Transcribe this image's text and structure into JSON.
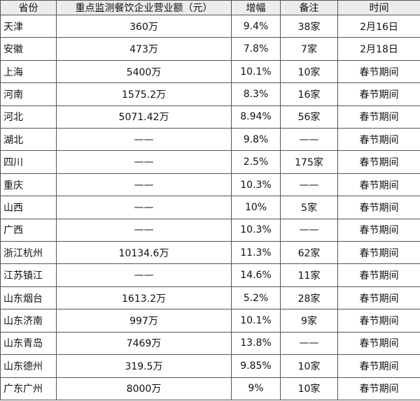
{
  "table": {
    "header": [
      "省份",
      "重点监测餐饮企业营业额（元）",
      "增幅",
      "备注",
      "时间"
    ],
    "rows": [
      [
        "天津",
        "360万",
        "9.4%",
        "38家",
        "2月16日"
      ],
      [
        "安徽",
        "473万",
        "7.8%",
        "7家",
        "2月18日"
      ],
      [
        "上海",
        "5400万",
        "10.1%",
        "10家",
        "春节期间"
      ],
      [
        "河南",
        "1575.2万",
        "8.3%",
        "16家",
        "春节期间"
      ],
      [
        "河北",
        "5071.42万",
        "8.94%",
        "56家",
        "春节期间"
      ],
      [
        "湖北",
        "——",
        "9.8%",
        "——",
        "春节期间"
      ],
      [
        "四川",
        "——",
        "2.5%",
        "175家",
        "春节期间"
      ],
      [
        "重庆",
        "——",
        "10.3%",
        "——",
        "春节期间"
      ],
      [
        "山西",
        "——",
        "10%",
        "5家",
        "春节期间"
      ],
      [
        "广西",
        "——",
        "10.3%",
        "——",
        "春节期间"
      ],
      [
        "浙江杭州",
        "10134.6万",
        "11.3%",
        "62家",
        "春节期间"
      ],
      [
        "江苏镇江",
        "——",
        "14.6%",
        "11家",
        "春节期间"
      ],
      [
        "山东烟台",
        "1613.2万",
        "5.2%",
        "28家",
        "春节期间"
      ],
      [
        "山东济南",
        "997万",
        "10.1%",
        "9家",
        "春节期间"
      ],
      [
        "山东青岛",
        "7469万",
        "13.8%",
        "——",
        "春节期间"
      ],
      [
        "山东德州",
        "319.5万",
        "9.85%",
        "10家",
        "春节期间"
      ],
      [
        "广东广州",
        "8000万",
        "9%",
        "10家",
        "春节期间"
      ]
    ]
  }
}
